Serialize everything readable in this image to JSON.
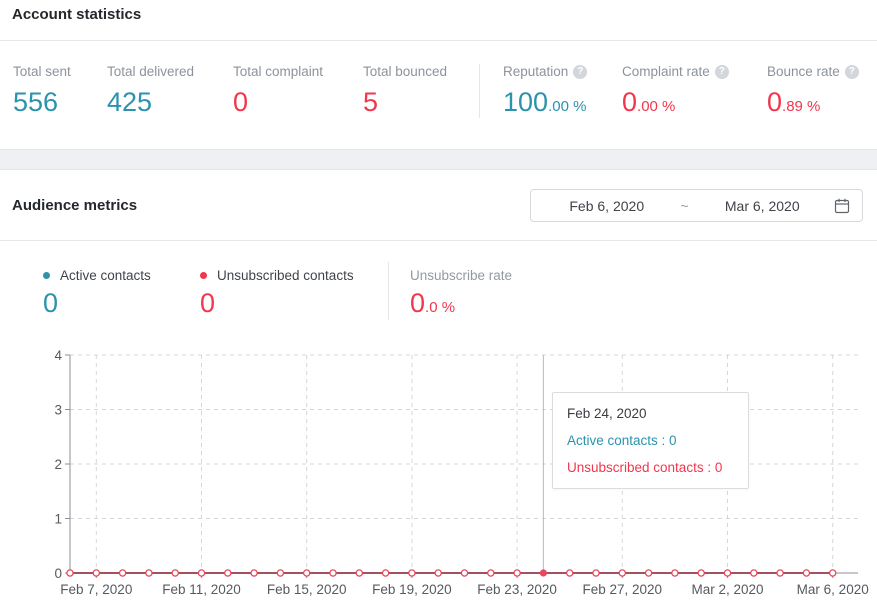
{
  "colors": {
    "teal": "#2b93ac",
    "red": "#f2364d"
  },
  "account_statistics": {
    "title": "Account statistics",
    "stats": [
      {
        "label": "Total sent",
        "value_main": "556",
        "value_suffix": "",
        "color": "teal",
        "help": false
      },
      {
        "label": "Total delivered",
        "value_main": "425",
        "value_suffix": "",
        "color": "teal",
        "help": false
      },
      {
        "label": "Total complaint",
        "value_main": "0",
        "value_suffix": "",
        "color": "red",
        "help": false
      },
      {
        "label": "Total bounced",
        "value_main": "5",
        "value_suffix": "",
        "color": "red",
        "help": false
      },
      {
        "label": "Reputation",
        "value_main": "100",
        "value_suffix": ".00 %",
        "color": "teal",
        "help": true
      },
      {
        "label": "Complaint rate",
        "value_main": "0",
        "value_suffix": ".00 %",
        "color": "red",
        "help": true
      },
      {
        "label": "Bounce rate",
        "value_main": "0",
        "value_suffix": ".89 %",
        "color": "red",
        "help": true
      }
    ]
  },
  "audience_metrics": {
    "title": "Audience metrics",
    "date_range": {
      "start": "Feb 6, 2020",
      "separator": "~",
      "end": "Mar 6, 2020",
      "calendar_icon": "calendar"
    },
    "legend": [
      {
        "label": "Active contacts",
        "value": "0",
        "color": "#2b93ac"
      },
      {
        "label": "Unsubscribed contacts",
        "value": "0",
        "color": "#f2364d"
      }
    ],
    "unsubscribe_rate": {
      "label": "Unsubscribe rate",
      "value_main": "0",
      "value_suffix": ".0 %"
    }
  },
  "tooltip": {
    "date": "Feb 24, 2020",
    "active": "Active contacts : 0",
    "unsubscribed": "Unsubscribed contacts : 0"
  },
  "chart_data": {
    "type": "line",
    "title": "Audience metrics",
    "x": [
      "Feb 6, 2020",
      "Feb 7, 2020",
      "Feb 8, 2020",
      "Feb 9, 2020",
      "Feb 10, 2020",
      "Feb 11, 2020",
      "Feb 12, 2020",
      "Feb 13, 2020",
      "Feb 14, 2020",
      "Feb 15, 2020",
      "Feb 16, 2020",
      "Feb 17, 2020",
      "Feb 18, 2020",
      "Feb 19, 2020",
      "Feb 20, 2020",
      "Feb 21, 2020",
      "Feb 22, 2020",
      "Feb 23, 2020",
      "Feb 24, 2020",
      "Feb 25, 2020",
      "Feb 26, 2020",
      "Feb 27, 2020",
      "Feb 28, 2020",
      "Feb 29, 2020",
      "Mar 1, 2020",
      "Mar 2, 2020",
      "Mar 3, 2020",
      "Mar 4, 2020",
      "Mar 5, 2020",
      "Mar 6, 2020"
    ],
    "series": [
      {
        "name": "Active contacts",
        "color": "#2b93ac",
        "line_color": "#2b93ac",
        "values": [
          0,
          0,
          0,
          0,
          0,
          0,
          0,
          0,
          0,
          0,
          0,
          0,
          0,
          0,
          0,
          0,
          0,
          0,
          0,
          0,
          0,
          0,
          0,
          0,
          0,
          0,
          0,
          0,
          0,
          0
        ]
      },
      {
        "name": "Unsubscribed contacts",
        "color": "#f2364d",
        "line_color": "#a2525e",
        "values": [
          0,
          0,
          0,
          0,
          0,
          0,
          0,
          0,
          0,
          0,
          0,
          0,
          0,
          0,
          0,
          0,
          0,
          0,
          0,
          0,
          0,
          0,
          0,
          0,
          0,
          0,
          0,
          0,
          0,
          0
        ]
      }
    ],
    "marker_color": "#e8465a",
    "x_tick_labels": [
      "Feb 7, 2020",
      "Feb 11, 2020",
      "Feb 15, 2020",
      "Feb 19, 2020",
      "Feb 23, 2020",
      "Feb 27, 2020",
      "Mar 2, 2020",
      "Mar 6, 2020"
    ],
    "x_tick_indices": [
      1,
      5,
      9,
      13,
      17,
      21,
      25,
      29
    ],
    "y_ticks": [
      0,
      1,
      2,
      3,
      4
    ],
    "ylim": [
      0,
      4
    ],
    "grid": true,
    "legend_position": "top-left",
    "hover": {
      "index": 18,
      "x_label": "Feb 24, 2020"
    }
  }
}
